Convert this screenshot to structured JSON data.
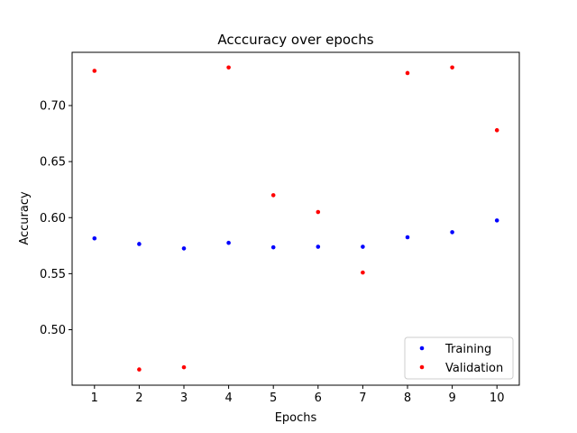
{
  "chart_data": {
    "type": "scatter",
    "title": "Acccuracy over epochs",
    "xlabel": "Epochs",
    "ylabel": "Accuracy",
    "x": [
      1,
      2,
      3,
      4,
      5,
      6,
      7,
      8,
      9,
      10
    ],
    "xlim": [
      0.5,
      10.5
    ],
    "ylim": [
      0.4505,
      0.7475
    ],
    "xticks": [
      "1",
      "2",
      "3",
      "4",
      "5",
      "6",
      "7",
      "8",
      "9",
      "10"
    ],
    "yticks": [
      "0.50",
      "0.55",
      "0.60",
      "0.65",
      "0.70"
    ],
    "grid": false,
    "legend_position": "lower right",
    "series": [
      {
        "name": "Training",
        "color": "#0000ff",
        "values": [
          0.5815,
          0.5765,
          0.5725,
          0.5775,
          0.5735,
          0.574,
          0.574,
          0.5825,
          0.587,
          0.5975
        ]
      },
      {
        "name": "Validation",
        "color": "#ff0000",
        "values": [
          0.731,
          0.4645,
          0.4665,
          0.734,
          0.62,
          0.605,
          0.551,
          0.729,
          0.734,
          0.678
        ]
      }
    ]
  }
}
